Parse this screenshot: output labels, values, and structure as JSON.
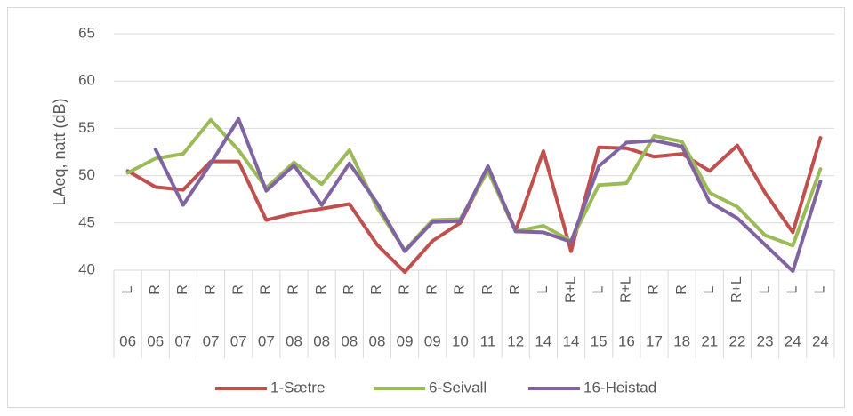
{
  "chart_data": {
    "type": "line",
    "y_label": "LAeq, natt (dB)",
    "categories": [
      "06",
      "06",
      "07",
      "07",
      "07",
      "07",
      "08",
      "08",
      "08",
      "08",
      "09",
      "09",
      "10",
      "11",
      "12",
      "14",
      "14",
      "15",
      "16",
      "17",
      "18",
      "21",
      "22",
      "23",
      "24",
      "24"
    ],
    "subcategories": [
      "L",
      "R",
      "R",
      "R",
      "R",
      "R",
      "R",
      "R",
      "R",
      "R",
      "R",
      "R",
      "R",
      "R",
      "R",
      "L",
      "R+L",
      "L",
      "R+L",
      "R",
      "R",
      "L",
      "R+L",
      "L",
      "L",
      "L"
    ],
    "series": [
      {
        "name": "1-Sætre",
        "color": "#c0504d",
        "values": [
          50.5,
          48.8,
          48.5,
          51.5,
          51.5,
          45.3,
          46.0,
          46.5,
          47.0,
          42.7,
          39.8,
          43.1,
          45.0,
          50.8,
          44.2,
          52.6,
          42.0,
          53.0,
          52.9,
          52.0,
          52.3,
          50.5,
          53.2,
          48.2,
          44.0,
          54.0
        ]
      },
      {
        "name": "6-Seivall",
        "color": "#9bbb59",
        "values": [
          50.3,
          51.8,
          52.3,
          55.9,
          52.7,
          48.7,
          51.4,
          49.1,
          52.7,
          46.6,
          42.1,
          45.3,
          45.4,
          50.5,
          44.1,
          44.7,
          43.1,
          49.0,
          49.2,
          54.2,
          53.6,
          48.2,
          46.7,
          43.7,
          42.6,
          50.7
        ]
      },
      {
        "name": "16-Heistad",
        "color": "#8064a2",
        "values": [
          null,
          52.8,
          46.9,
          51.3,
          56.0,
          48.4,
          51.1,
          46.9,
          51.3,
          47.1,
          42.0,
          45.1,
          45.2,
          51.0,
          44.1,
          44.0,
          43.0,
          51.0,
          53.5,
          53.7,
          53.1,
          47.2,
          45.5,
          42.7,
          39.9,
          49.4
        ]
      }
    ],
    "ylim": [
      40,
      65
    ],
    "yticks": [
      40,
      45,
      50,
      55,
      60,
      65
    ],
    "grid": true,
    "legend": "bottom"
  }
}
